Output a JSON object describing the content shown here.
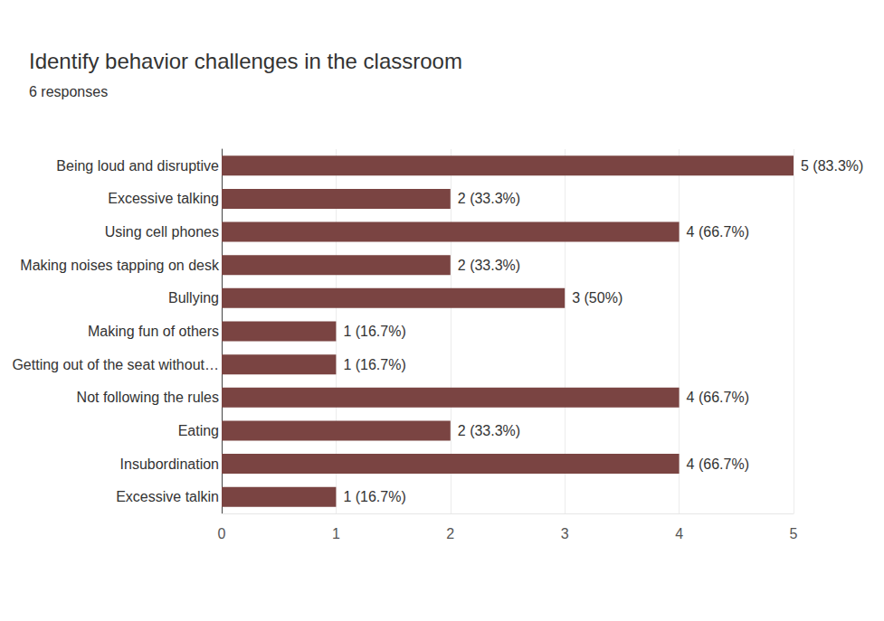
{
  "chart_data": {
    "type": "bar",
    "orientation": "horizontal",
    "title": "Identify behavior challenges in the classroom",
    "subtitle": "6 responses",
    "categories": [
      "Being loud and disruptive",
      "Excessive talking",
      "Using cell phones",
      "Making noises tapping on desk",
      "Bullying",
      "Making fun of others",
      "Getting out of the seat without…",
      "Not following the rules",
      "Eating",
      "Insubordination",
      "Excessive talkin"
    ],
    "values": [
      5,
      2,
      4,
      2,
      3,
      1,
      1,
      4,
      2,
      4,
      1
    ],
    "value_labels": [
      "5 (83.3%)",
      "2 (33.3%)",
      "4 (66.7%)",
      "2 (33.3%)",
      "3 (50%)",
      "1 (16.7%)",
      "1 (16.7%)",
      "4 (66.7%)",
      "2 (33.3%)",
      "4 (66.7%)",
      "1 (16.7%)"
    ],
    "color": "#7a4442",
    "xlim": [
      0,
      5
    ],
    "xticks": [
      0,
      1,
      2,
      3,
      4,
      5
    ],
    "grid": true,
    "data_labels": true
  }
}
